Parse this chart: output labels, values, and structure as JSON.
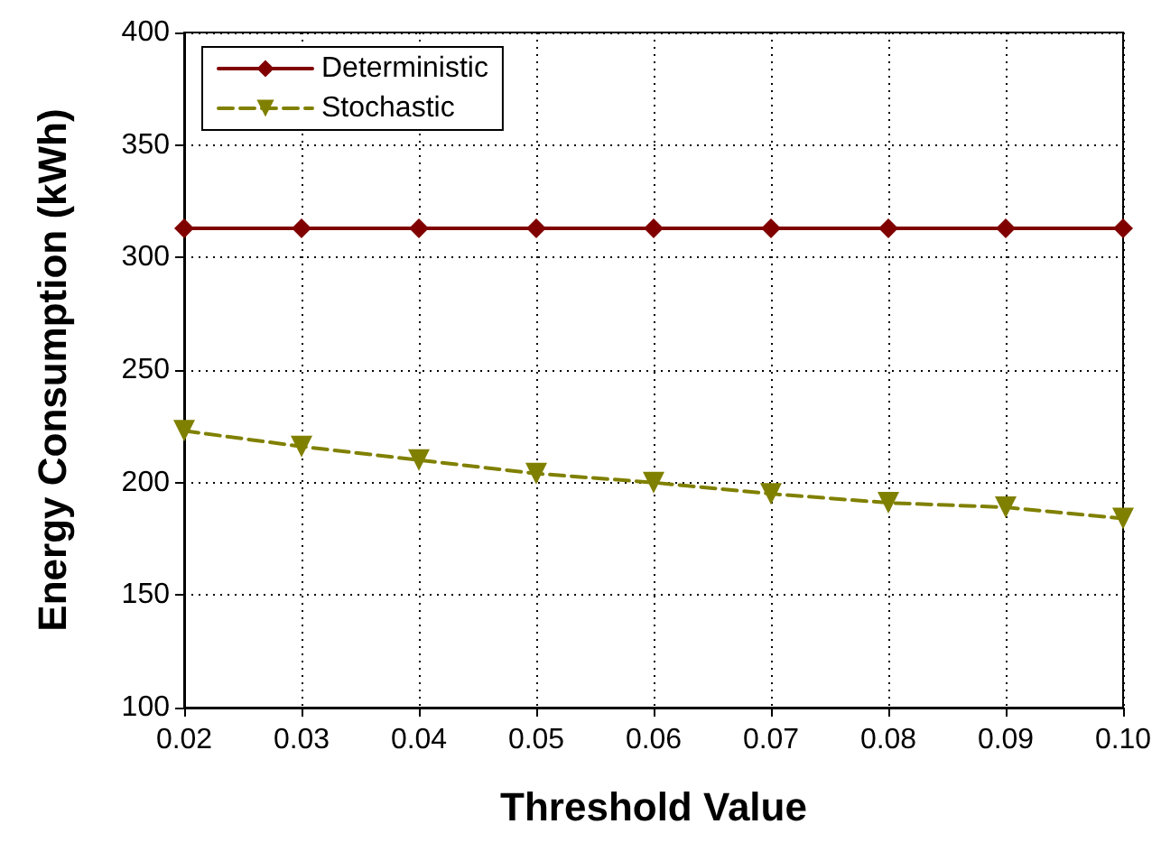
{
  "chart_data": {
    "type": "line",
    "xlabel": "Threshold Value",
    "ylabel": "Energy Consumption (kWh)",
    "x": [
      0.02,
      0.03,
      0.04,
      0.05,
      0.06,
      0.07,
      0.08,
      0.09,
      0.1
    ],
    "series": [
      {
        "name": "Deterministic",
        "color": "#800000",
        "marker": "diamond",
        "line_style": "solid",
        "values": [
          313,
          313,
          313,
          313,
          313,
          313,
          313,
          313,
          313
        ]
      },
      {
        "name": "Stochastic",
        "color": "#808000",
        "marker": "triangle",
        "line_style": "dashed",
        "values": [
          223,
          216,
          210,
          204,
          200,
          195,
          191,
          189,
          184
        ]
      }
    ],
    "xlim": [
      0.02,
      0.1
    ],
    "xticks": [
      {
        "value": 0.02,
        "label": "0.02"
      },
      {
        "value": 0.03,
        "label": "0.03"
      },
      {
        "value": 0.04,
        "label": "0.04"
      },
      {
        "value": 0.05,
        "label": "0.05"
      },
      {
        "value": 0.06,
        "label": "0.06"
      },
      {
        "value": 0.07,
        "label": "0.07"
      },
      {
        "value": 0.08,
        "label": "0.08"
      },
      {
        "value": 0.09,
        "label": "0.09"
      },
      {
        "value": 0.1,
        "label": "0.10"
      }
    ],
    "ylim": [
      100,
      400
    ],
    "yticks": [
      100,
      150,
      200,
      250,
      300,
      350,
      400
    ],
    "grid": true,
    "legend": "top left"
  }
}
